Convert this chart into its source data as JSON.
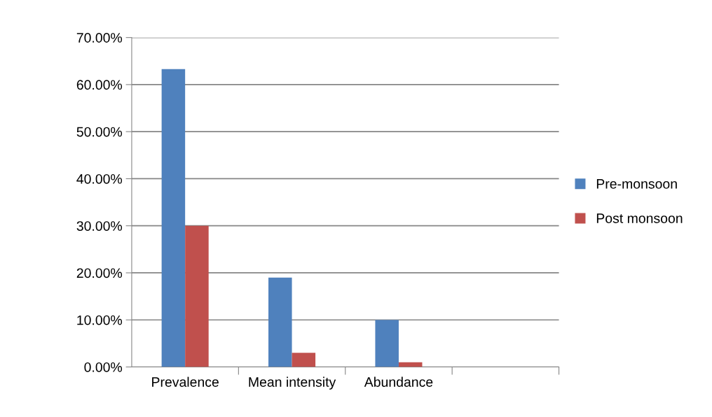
{
  "chart_data": {
    "type": "bar",
    "categories": [
      "Prevalence",
      "Mean intensity",
      "Abundance",
      null
    ],
    "series": [
      {
        "name": "Pre-monsoon",
        "color": "#4f81bd",
        "values": [
          63.3,
          19.0,
          10.0,
          null
        ]
      },
      {
        "name": "Post monsoon",
        "color": "#c0504d",
        "values": [
          30.0,
          3.0,
          1.0,
          null
        ]
      }
    ],
    "ylim": [
      0,
      70
    ],
    "yticks": [
      {
        "value": 0,
        "label": "0.00%"
      },
      {
        "value": 10,
        "label": "10.00%"
      },
      {
        "value": 20,
        "label": "20.00%"
      },
      {
        "value": 30,
        "label": "30.00%"
      },
      {
        "value": 40,
        "label": "40.00%"
      },
      {
        "value": 50,
        "label": "50.00%"
      },
      {
        "value": 60,
        "label": "60.00%"
      },
      {
        "value": 70,
        "label": "70.00%"
      }
    ],
    "grid": "y",
    "legend": "right"
  }
}
